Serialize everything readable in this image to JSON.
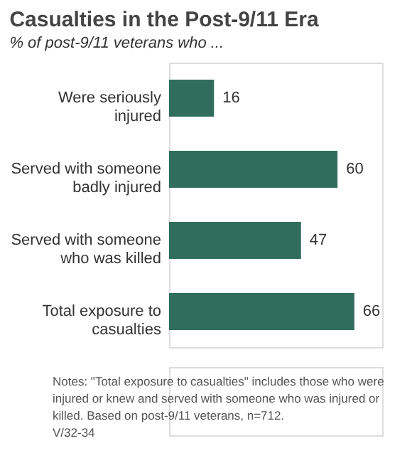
{
  "chart_data": {
    "type": "bar",
    "orientation": "horizontal",
    "title": "Casualties in the Post-9/11 Era",
    "subtitle": "% of post-9/11 veterans who ...",
    "categories": [
      "Were seriously\ninjured",
      "Served with someone\nbadly injured",
      "Served with someone\nwho was killed",
      "Total exposure to\ncasualties"
    ],
    "values": [
      16,
      60,
      47,
      66
    ],
    "color": "#316d5d",
    "data_labels": true,
    "annotations": [
      "Notes: \"Total exposure to casualties\" includes those who were injured or knew and served with someone who was injured or killed. Based on post-9/11 veterans, n=712.",
      "V/32-34"
    ]
  }
}
